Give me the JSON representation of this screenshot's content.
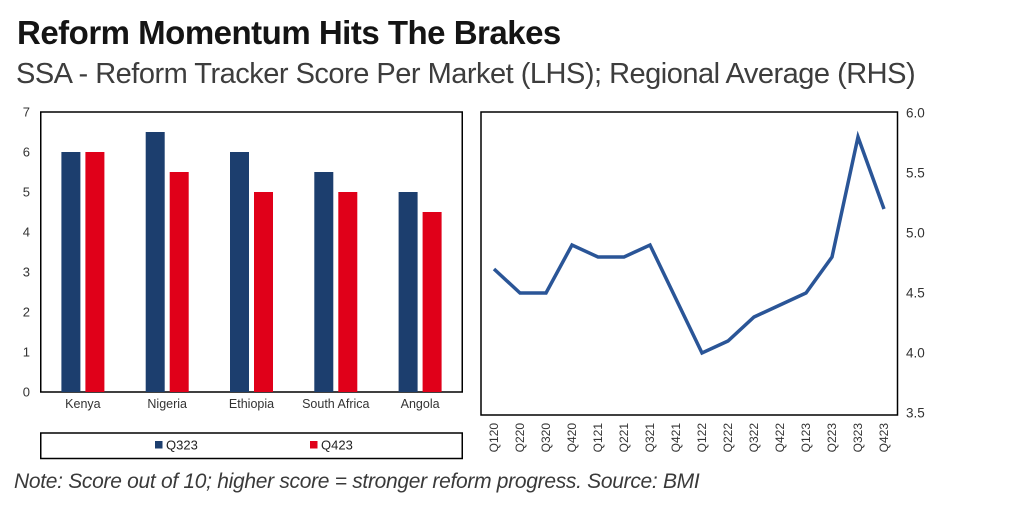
{
  "page": {
    "title": "Reform Momentum Hits The Brakes",
    "subtitle": "SSA - Reform Tracker Score Per Market (LHS); Regional Average (RHS)",
    "note": "Note: Score out of 10; higher score = stronger reform progress. Source: BMI"
  },
  "colors": {
    "bar_blue": "#1c3e6e",
    "bar_red": "#e00019",
    "line_blue": "#2a5597",
    "axis_border": "#000000",
    "tick_text": "#333333"
  },
  "chart_data": [
    {
      "type": "bar",
      "title": "SSA - Reform Tracker Score Per Market (LHS)",
      "categories": [
        "Kenya",
        "Nigeria",
        "Ethiopia",
        "South Africa",
        "Angola"
      ],
      "series": [
        {
          "name": "Q323",
          "color": "#1c3e6e",
          "values": [
            6.0,
            6.5,
            6.0,
            5.5,
            5.0
          ]
        },
        {
          "name": "Q423",
          "color": "#e00019",
          "values": [
            6.0,
            5.5,
            5.0,
            5.0,
            4.5
          ]
        }
      ],
      "xlabel": "",
      "ylabel": "",
      "ylim": [
        0,
        7
      ],
      "yticks": [
        0,
        1,
        2,
        3,
        4,
        5,
        6,
        7
      ],
      "grid": false,
      "legend_position": "bottom-boxed"
    },
    {
      "type": "line",
      "title": "Regional Average (RHS)",
      "x": [
        "Q120",
        "Q220",
        "Q320",
        "Q420",
        "Q121",
        "Q221",
        "Q321",
        "Q421",
        "Q122",
        "Q222",
        "Q322",
        "Q422",
        "Q123",
        "Q223",
        "Q323",
        "Q423"
      ],
      "values": [
        4.7,
        4.5,
        4.5,
        4.9,
        4.8,
        4.8,
        4.9,
        4.45,
        4.0,
        4.1,
        4.3,
        4.4,
        4.5,
        4.8,
        5.8,
        5.2
      ],
      "xlabel": "",
      "ylabel": "",
      "ylim": [
        3.5,
        6.0
      ],
      "yticks": [
        3.5,
        4.0,
        4.5,
        5.0,
        5.5,
        6.0
      ],
      "y_axis_side": "right",
      "grid": false,
      "line_color": "#2a5597"
    }
  ]
}
